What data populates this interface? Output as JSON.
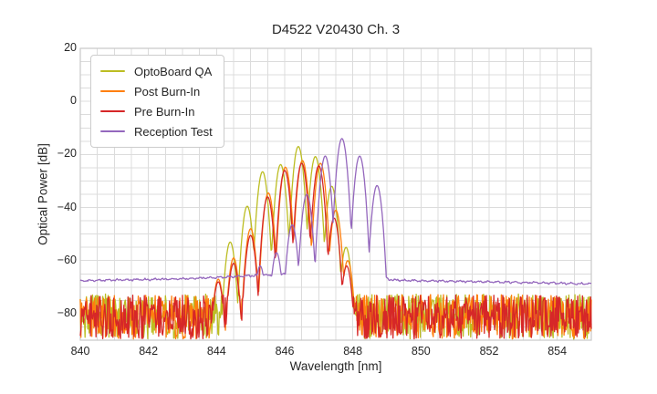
{
  "title": "D4522 V20430 Ch. 3",
  "chart_data": {
    "type": "line",
    "title": "D4522 V20430 Ch. 3",
    "xlabel": "Wavelength [nm]",
    "ylabel": "Optical Power [dB]",
    "xlim": [
      840,
      855
    ],
    "ylim": [
      -90,
      20
    ],
    "x_ticks": [
      840,
      842,
      844,
      846,
      848,
      850,
      852,
      854
    ],
    "y_ticks": [
      20,
      0,
      -20,
      -40,
      -60,
      -80
    ],
    "grid": {
      "on": true,
      "x_step_nm": 0.5,
      "y_step_db": 5,
      "color": "#dcdcdc"
    },
    "border_color": "#c9c9c9",
    "legend_position": "upper left",
    "mode_shape": {
      "half_width_nm": 0.26,
      "rolloff_db": 32
    },
    "series": [
      {
        "name": "OptoBoard QA",
        "color": "#bcbd22",
        "noise": {
          "type": "spiky",
          "top_db": -72.6,
          "bottom_db": -89.6,
          "seed": 101
        },
        "modes": [
          {
            "wl": 844.4,
            "db": -53.0
          },
          {
            "wl": 844.9,
            "db": -39.5
          },
          {
            "wl": 845.35,
            "db": -26.5
          },
          {
            "wl": 845.88,
            "db": -23.8
          },
          {
            "wl": 846.4,
            "db": -17.0
          },
          {
            "wl": 846.9,
            "db": -20.8
          },
          {
            "wl": 847.38,
            "db": -32.0
          },
          {
            "wl": 847.8,
            "db": -55.0
          }
        ]
      },
      {
        "name": "Post Burn-In",
        "color": "#ff7f0e",
        "noise": {
          "type": "spiky",
          "top_db": -72.8,
          "bottom_db": -89.6,
          "seed": 202
        },
        "modes": [
          {
            "wl": 844.05,
            "db": -67.0
          },
          {
            "wl": 844.5,
            "db": -59.0
          },
          {
            "wl": 845.0,
            "db": -48.0
          },
          {
            "wl": 845.52,
            "db": -34.5
          },
          {
            "wl": 846.02,
            "db": -24.8
          },
          {
            "wl": 846.52,
            "db": -22.3
          },
          {
            "wl": 847.05,
            "db": -23.3
          },
          {
            "wl": 847.5,
            "db": -41.0
          },
          {
            "wl": 847.85,
            "db": -60.0
          }
        ]
      },
      {
        "name": "Pre Burn-In",
        "color": "#d62728",
        "noise": {
          "type": "spiky",
          "top_db": -73.0,
          "bottom_db": -89.6,
          "seed": 303
        },
        "modes": [
          {
            "wl": 844.05,
            "db": -68.0
          },
          {
            "wl": 844.5,
            "db": -61.0
          },
          {
            "wl": 845.0,
            "db": -50.5
          },
          {
            "wl": 845.5,
            "db": -36.0
          },
          {
            "wl": 846.0,
            "db": -26.0
          },
          {
            "wl": 846.5,
            "db": -23.3
          },
          {
            "wl": 847.0,
            "db": -24.3
          },
          {
            "wl": 847.45,
            "db": -44.0
          },
          {
            "wl": 847.82,
            "db": -62.0
          }
        ]
      },
      {
        "name": "Reception Test",
        "color": "#9467bd",
        "noise": {
          "type": "smooth",
          "seed": 404
        },
        "floor_points": [
          [
            840.0,
            -67.6
          ],
          [
            841.5,
            -67.2
          ],
          [
            843.0,
            -66.9
          ],
          [
            844.0,
            -66.4
          ],
          [
            844.7,
            -65.9
          ],
          [
            845.5,
            -65.4
          ],
          [
            846.3,
            -65.1
          ],
          [
            848.5,
            -65.5
          ],
          [
            848.8,
            -66.2
          ],
          [
            849.1,
            -67.2
          ],
          [
            849.6,
            -67.5
          ],
          [
            851.0,
            -67.8
          ],
          [
            852.5,
            -68.1
          ],
          [
            854.0,
            -68.5
          ],
          [
            855.0,
            -68.8
          ]
        ],
        "modes": [
          {
            "wl": 845.28,
            "db": -62.0
          },
          {
            "wl": 845.76,
            "db": -57.0
          },
          {
            "wl": 846.22,
            "db": -46.5
          },
          {
            "wl": 846.65,
            "db": -35.0
          },
          {
            "wl": 847.19,
            "db": -20.6
          },
          {
            "wl": 847.68,
            "db": -14.0
          },
          {
            "wl": 848.2,
            "db": -20.6
          },
          {
            "wl": 848.71,
            "db": -31.7
          }
        ]
      }
    ]
  }
}
